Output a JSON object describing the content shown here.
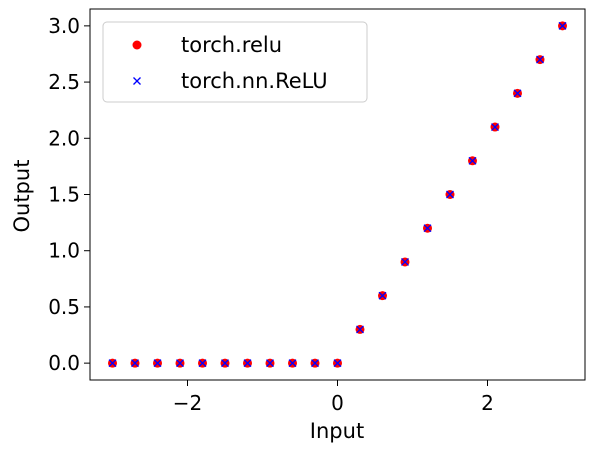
{
  "chart_data": {
    "type": "scatter",
    "title": "",
    "xlabel": "Input",
    "ylabel": "Output",
    "xlim": [
      -3.3,
      3.3
    ],
    "ylim": [
      -0.15,
      3.15
    ],
    "xticks": [
      -2,
      0,
      2
    ],
    "xtick_labels": [
      "−2",
      "0",
      "2"
    ],
    "yticks": [
      0.0,
      0.5,
      1.0,
      1.5,
      2.0,
      2.5,
      3.0
    ],
    "ytick_labels": [
      "0.0",
      "0.5",
      "1.0",
      "1.5",
      "2.0",
      "2.5",
      "3.0"
    ],
    "grid": false,
    "legend_position": "top-left",
    "x": [
      -3.0,
      -2.7,
      -2.4,
      -2.1,
      -1.8,
      -1.5,
      -1.2,
      -0.9,
      -0.6,
      -0.3,
      0.0,
      0.3,
      0.6,
      0.9,
      1.2,
      1.5,
      1.8,
      2.1,
      2.4,
      2.7,
      3.0
    ],
    "series": [
      {
        "name": "torch.relu",
        "marker": "circle",
        "color": "#ff0000",
        "values": [
          0,
          0,
          0,
          0,
          0,
          0,
          0,
          0,
          0,
          0,
          0,
          0.3,
          0.6,
          0.9,
          1.2,
          1.5,
          1.8,
          2.1,
          2.4,
          2.7,
          3.0
        ]
      },
      {
        "name": "torch.nn.ReLU",
        "marker": "x",
        "color": "#0000ff",
        "values": [
          0,
          0,
          0,
          0,
          0,
          0,
          0,
          0,
          0,
          0,
          0,
          0.3,
          0.6,
          0.9,
          1.2,
          1.5,
          1.8,
          2.1,
          2.4,
          2.7,
          3.0
        ]
      }
    ]
  }
}
